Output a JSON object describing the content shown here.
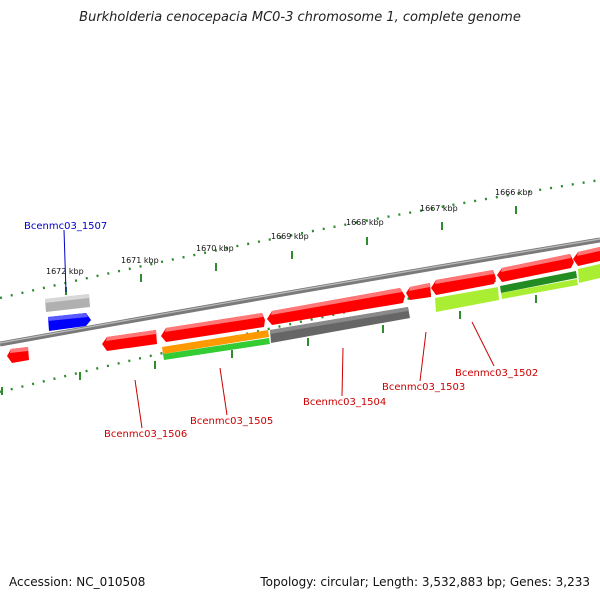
{
  "title": "Burkholderia cenocepacia MC0-3 chromosome 1, complete genome",
  "footer": {
    "accession": "Accession: NC_010508",
    "summary": "Topology: circular; Length: 3,532,883 bp; Genes: 3,233"
  },
  "scale_labels": [
    "1666 kbp",
    "1667 kbp",
    "1668 kbp",
    "1669 kbp",
    "1670 kbp",
    "1671 kbp",
    "1672 kbp"
  ],
  "gene_labels": [
    {
      "name": "Bcenmc03_1507",
      "color": "#0000c8"
    },
    {
      "name": "Bcenmc03_1506",
      "color": "#cc0000"
    },
    {
      "name": "Bcenmc03_1505",
      "color": "#cc0000"
    },
    {
      "name": "Bcenmc03_1504",
      "color": "#cc0000"
    },
    {
      "name": "Bcenmc03_1503",
      "color": "#cc0000"
    },
    {
      "name": "Bcenmc03_1502",
      "color": "#cc0000"
    }
  ],
  "colors": {
    "backbone": "#7a7a7a",
    "cds": "#ff0000",
    "cds_reverse": "#0000ff",
    "gene_gray": "#b0b0b0",
    "dark_gray": "#666666",
    "orange": "#ff9900",
    "green": "#33cc33",
    "lime": "#aaee33",
    "dark_green": "#228b22",
    "tick": "#2e8b2e"
  }
}
